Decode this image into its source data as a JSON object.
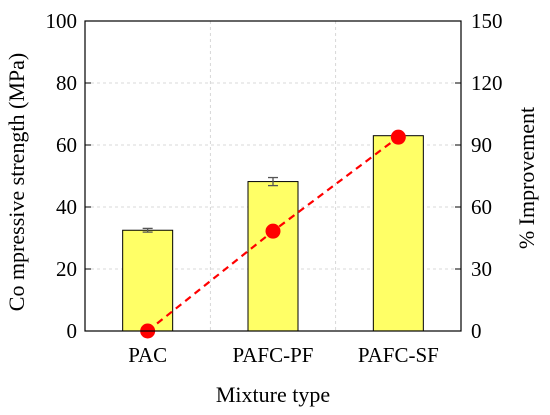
{
  "chart_data": {
    "type": "bar",
    "title": "",
    "xlabel": "Mixture type",
    "ylabel": "Co mpressive strength (MPa)",
    "y2label": "% Improvement",
    "categories": [
      "PAC",
      "PAFC-PF",
      "PAFC-SF"
    ],
    "series": [
      {
        "type": "bar",
        "axis": "left",
        "values": [
          32.5,
          48.2,
          63.0
        ],
        "errors": [
          0.6,
          1.3,
          1.1
        ],
        "color": "#ffff66"
      },
      {
        "type": "line",
        "axis": "right",
        "values": [
          0,
          48.3,
          93.8
        ],
        "color": "#ff0000",
        "style": "dashed"
      }
    ],
    "ylim": [
      0,
      100
    ],
    "y2lim": [
      0,
      150
    ],
    "yticks": [
      "0",
      "20",
      "40",
      "60",
      "80",
      "100"
    ],
    "y2ticks": [
      "0",
      "30",
      "60",
      "90",
      "120",
      "150"
    ],
    "grid": true,
    "legend": "none"
  }
}
